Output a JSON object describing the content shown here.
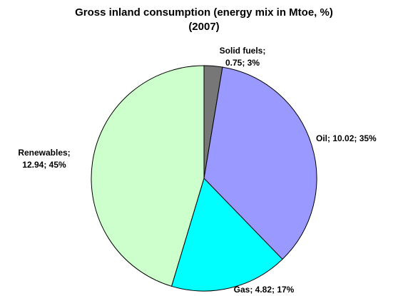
{
  "chart_data": {
    "type": "pie",
    "title": "Gross inland consumption (energy mix in Mtoe, %)",
    "subtitle": "(2007)",
    "categories": [
      "Solid fuels",
      "Oil",
      "Gas",
      "Renewables"
    ],
    "values": [
      0.75,
      10.02,
      4.82,
      12.94
    ],
    "value_labels": [
      [
        "Solid fuels;",
        "0.75; 3%"
      ],
      [
        "Oil; 10.02; 35%"
      ],
      [
        "Gas; 4.82; 17%"
      ],
      [
        "Renewables;",
        "12.94; 45%"
      ]
    ],
    "colors": [
      "#777777",
      "#9999ff",
      "#00ffff",
      "#ccffcc"
    ]
  }
}
